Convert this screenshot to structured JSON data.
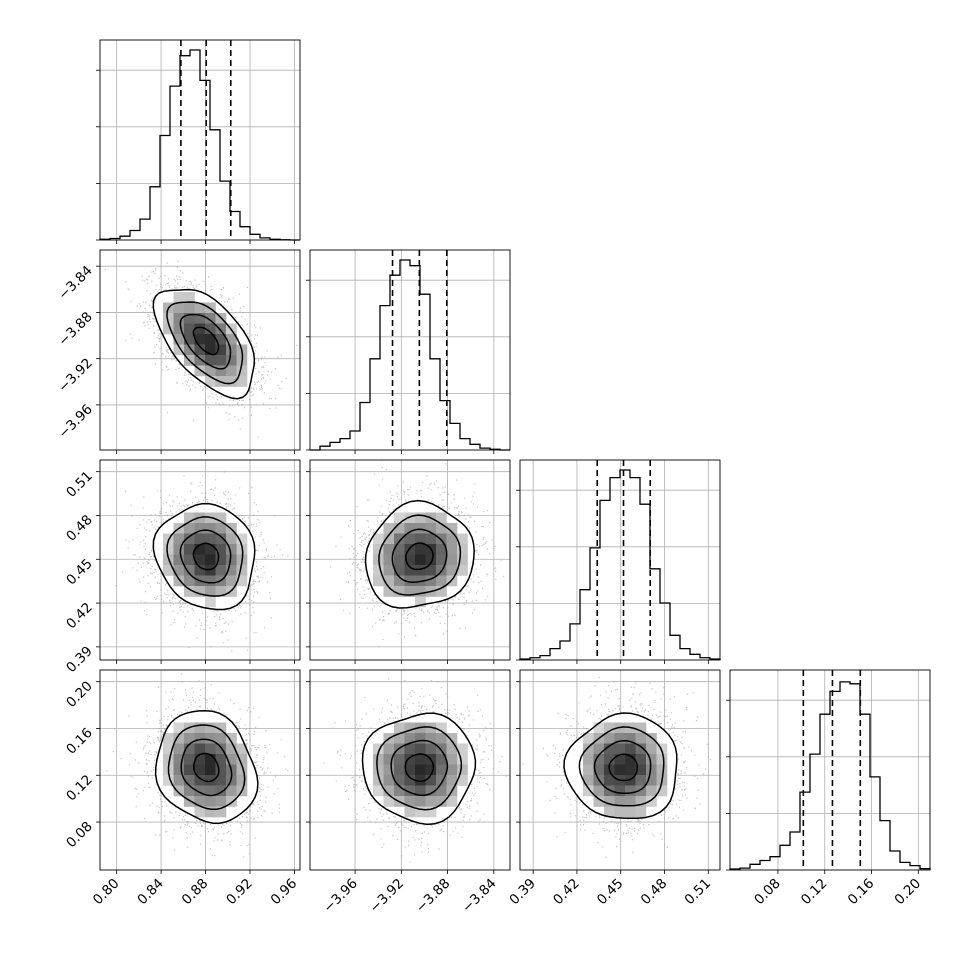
{
  "chart_data": {
    "type": "corner",
    "title": "",
    "parameters": [
      {
        "label": "",
        "range": [
          0.785,
          0.965
        ],
        "ticks": [
          0.8,
          0.84,
          0.88,
          0.92,
          0.96
        ],
        "tick_labels": [
          "0.80",
          "0.84",
          "0.88",
          "0.92",
          "0.96"
        ],
        "quantiles": [
          0.8578,
          0.8806,
          0.9027
        ]
      },
      {
        "label": "",
        "range": [
          -3.999,
          -3.826
        ],
        "ticks": [
          -3.96,
          -3.92,
          -3.88,
          -3.84
        ],
        "tick_labels": [
          "−3.96",
          "−3.92",
          "−3.88",
          "−3.84"
        ],
        "quantiles": [
          -3.9276,
          -3.9044,
          -3.8807
        ]
      },
      {
        "label": "",
        "range": [
          0.381,
          0.518
        ],
        "ticks": [
          0.39,
          0.42,
          0.45,
          0.48,
          0.51
        ],
        "tick_labels": [
          "0.39",
          "0.42",
          "0.45",
          "0.48",
          "0.51"
        ],
        "quantiles": [
          0.4339,
          0.4519,
          0.4702
        ]
      },
      {
        "label": "",
        "range": [
          0.039,
          0.21
        ],
        "ticks": [
          0.08,
          0.12,
          0.16,
          0.2
        ],
        "tick_labels": [
          "0.08",
          "0.12",
          "0.16",
          "0.20"
        ],
        "quantiles": [
          0.1017,
          0.1266,
          0.1504
        ]
      }
    ],
    "histograms": [
      [
        0.004,
        0.008,
        0.02,
        0.05,
        0.11,
        0.28,
        0.55,
        0.81,
        0.97,
        1.0,
        0.84,
        0.58,
        0.31,
        0.15,
        0.07,
        0.03,
        0.011,
        0.004,
        0.001,
        0.0
      ],
      [
        0.0,
        0.02,
        0.04,
        0.06,
        0.1,
        0.25,
        0.48,
        0.76,
        0.92,
        1.0,
        0.97,
        0.82,
        0.48,
        0.26,
        0.14,
        0.06,
        0.03,
        0.01,
        0.004,
        0.0
      ],
      [
        0.005,
        0.012,
        0.023,
        0.06,
        0.1,
        0.19,
        0.37,
        0.59,
        0.84,
        0.96,
        1.0,
        0.96,
        0.82,
        0.48,
        0.3,
        0.13,
        0.06,
        0.03,
        0.012,
        0.005
      ],
      [
        0.005,
        0.01,
        0.03,
        0.05,
        0.07,
        0.13,
        0.2,
        0.41,
        0.61,
        0.82,
        0.94,
        0.99,
        0.98,
        0.82,
        0.49,
        0.26,
        0.1,
        0.04,
        0.023,
        0.007
      ]
    ],
    "pairs": [
      {
        "x": 0,
        "y": 1,
        "center": [
          0.8806,
          -3.9044
        ],
        "sd": [
          0.0225,
          0.0235
        ],
        "correlation": -0.55
      },
      {
        "x": 0,
        "y": 2,
        "center": [
          0.8806,
          0.4519
        ],
        "sd": [
          0.0225,
          0.018
        ],
        "correlation": -0.1
      },
      {
        "x": 1,
        "y": 2,
        "center": [
          -3.9044,
          0.4519
        ],
        "sd": [
          0.0235,
          0.018
        ],
        "correlation": 0.08
      },
      {
        "x": 0,
        "y": 3,
        "center": [
          0.8806,
          0.1266
        ],
        "sd": [
          0.0225,
          0.024
        ],
        "correlation": -0.15
      },
      {
        "x": 1,
        "y": 3,
        "center": [
          -3.9044,
          0.1266
        ],
        "sd": [
          0.0235,
          0.024
        ],
        "correlation": 0.0
      },
      {
        "x": 2,
        "y": 3,
        "center": [
          0.4519,
          0.1266
        ],
        "sd": [
          0.018,
          0.024
        ],
        "correlation": 0.0
      }
    ],
    "contour_levels_sigma": [
      0.5,
      1.0,
      1.5,
      2.0
    ],
    "grid": true,
    "colors": {
      "line": "#000000",
      "points": "#9a9a9a",
      "grid": "#b0b0b0",
      "background": "#ffffff",
      "density_dark": "#111111"
    }
  }
}
